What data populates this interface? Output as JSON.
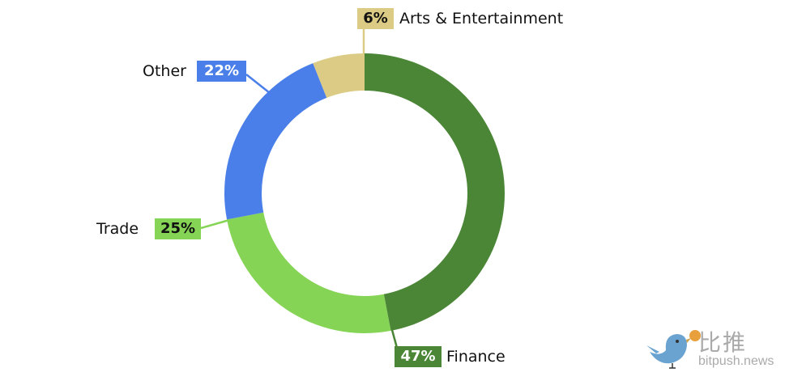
{
  "chart_data": {
    "type": "pie",
    "variant": "donut",
    "slices": [
      {
        "label": "Finance",
        "value": 47,
        "display": "47%",
        "color": "#4a8636"
      },
      {
        "label": "Trade",
        "value": 25,
        "display": "25%",
        "color": "#86d455"
      },
      {
        "label": "Other",
        "value": 22,
        "display": "22%",
        "color": "#4a7fe9"
      },
      {
        "label": "Arts & Entertainment",
        "value": 6,
        "display": "6%",
        "color": "#dbcb84"
      }
    ],
    "start_angle": "top",
    "direction": "clockwise"
  },
  "watermark": {
    "cn": "比推",
    "en": "bitpush.news"
  }
}
